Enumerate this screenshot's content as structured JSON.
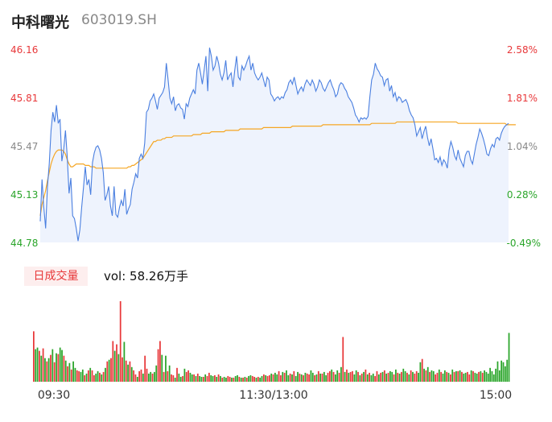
{
  "header": {
    "name": "中科曙光",
    "code": "603019.SH"
  },
  "volume_panel": {
    "badge": "日成交量",
    "vol_label": "vol: 58.26万手"
  },
  "colors": {
    "price_line": "#4a7fe0",
    "avg_line": "#f5a623",
    "up": "#e8383a",
    "down": "#2aa52a",
    "area_fill": "#eef3fd"
  },
  "chart_data": [
    {
      "type": "line",
      "y_ticks": [
        "46.16",
        "45.81",
        "45.47",
        "45.13",
        "44.78"
      ],
      "y_right_ticks": [
        "2.58%",
        "1.81%",
        "1.04%",
        "0.28%",
        "-0.49%"
      ],
      "ylim": [
        44.78,
        46.16
      ],
      "x_ticks": [
        "09:30",
        "11:30/13:00",
        "15:00"
      ],
      "series": [
        {
          "values": [
            44.93,
            45.23,
            45.03,
            44.88,
            45.18,
            45.34,
            45.58,
            45.71,
            45.64,
            45.76,
            45.63,
            45.66,
            45.36,
            45.44,
            45.58,
            45.39,
            45.13,
            45.24,
            44.97,
            44.95,
            44.88,
            44.79,
            44.87,
            45.03,
            45.17,
            45.32,
            45.19,
            45.23,
            45.12,
            45.35,
            45.42,
            45.46,
            45.47,
            45.44,
            45.38,
            45.28,
            45.08,
            45.12,
            45.18,
            45.04,
            44.97,
            45.18,
            44.98,
            44.96,
            45.03,
            45.08,
            45.04,
            45.16,
            44.98,
            45.02,
            45.05,
            45.16,
            45.21,
            45.27,
            45.24,
            45.38,
            45.41,
            45.38,
            45.49,
            45.71,
            45.73,
            45.79,
            45.81,
            45.84,
            45.79,
            45.73,
            45.81,
            45.83,
            45.85,
            45.89,
            46.06,
            45.94,
            45.81,
            45.77,
            45.82,
            45.72,
            45.76,
            45.77,
            45.74,
            45.73,
            45.66,
            45.77,
            45.75,
            45.81,
            45.84,
            45.87,
            45.84,
            46.01,
            46.06,
            45.99,
            45.91,
            46.01,
            46.11,
            45.86,
            46.17,
            46.11,
            46.01,
            46.04,
            46.11,
            46.06,
            45.98,
            45.94,
            45.99,
            46.08,
            45.94,
            45.97,
            45.99,
            45.89,
            46.01,
            46.11,
            45.96,
            45.94,
            46.04,
            46.01,
            46.04,
            46.08,
            46.11,
            46.01,
            46.06,
            45.99,
            45.96,
            45.94,
            45.96,
            45.99,
            45.94,
            45.89,
            45.96,
            45.94,
            45.84,
            45.82,
            45.79,
            45.81,
            45.82,
            45.8,
            45.82,
            45.81,
            45.85,
            45.87,
            45.92,
            45.94,
            45.91,
            45.96,
            45.9,
            45.84,
            45.87,
            45.89,
            45.86,
            45.91,
            45.94,
            45.92,
            45.9,
            45.94,
            45.91,
            45.86,
            45.89,
            45.94,
            45.92,
            45.88,
            45.86,
            45.89,
            45.92,
            45.94,
            45.9,
            45.87,
            45.82,
            45.84,
            45.9,
            45.92,
            45.91,
            45.88,
            45.86,
            45.82,
            45.8,
            45.78,
            45.74,
            45.69,
            45.67,
            45.64,
            45.67,
            45.66,
            45.67,
            45.66,
            45.68,
            45.82,
            45.94,
            45.98,
            46.06,
            46.02,
            46.0,
            45.97,
            45.96,
            45.9,
            45.94,
            45.95,
            45.86,
            45.9,
            45.82,
            45.85,
            45.79,
            45.82,
            45.81,
            45.78,
            45.79,
            45.8,
            45.77,
            45.72,
            45.69,
            45.67,
            45.62,
            45.54,
            45.57,
            45.6,
            45.52,
            45.57,
            45.61,
            45.53,
            45.47,
            45.52,
            45.45,
            45.37,
            45.38,
            45.35,
            45.39,
            45.33,
            45.37,
            45.35,
            45.31,
            45.44,
            45.5,
            45.46,
            45.4,
            45.37,
            45.44,
            45.38,
            45.35,
            45.32,
            45.4,
            45.43,
            45.43,
            45.37,
            45.34,
            45.41,
            45.48,
            45.53,
            45.59,
            45.56,
            45.52,
            45.47,
            45.41,
            45.4,
            45.45,
            45.48,
            45.46,
            45.52,
            45.53,
            45.51,
            45.56,
            45.59,
            45.61,
            45.62,
            45.63
          ]
        },
        {
          "values": [
            44.97,
            45.05,
            45.1,
            45.15,
            45.22,
            45.28,
            45.34,
            45.38,
            45.41,
            45.43,
            45.44,
            45.44,
            45.44,
            45.43,
            45.41,
            45.37,
            45.34,
            45.32,
            45.32,
            45.33,
            45.34,
            45.34,
            45.34,
            45.34,
            45.34,
            45.33,
            45.33,
            45.33,
            45.32,
            45.32,
            45.32,
            45.31,
            45.31,
            45.31,
            45.31,
            45.31,
            45.31,
            45.31,
            45.31,
            45.31,
            45.31,
            45.31,
            45.31,
            45.31,
            45.31,
            45.31,
            45.31,
            45.31,
            45.31,
            45.32,
            45.32,
            45.33,
            45.33,
            45.34,
            45.35,
            45.36,
            45.37,
            45.38,
            45.4,
            45.42,
            45.44,
            45.46,
            45.48,
            45.5,
            45.5,
            45.51,
            45.51,
            45.51,
            45.52,
            45.52,
            45.53,
            45.53,
            45.53,
            45.53,
            45.54,
            45.54,
            45.54,
            45.54,
            45.54,
            45.54,
            45.54,
            45.54,
            45.54,
            45.54,
            45.54,
            45.55,
            45.55,
            45.55,
            45.55,
            45.55,
            45.56,
            45.56,
            45.56,
            45.56,
            45.56,
            45.57,
            45.57,
            45.57,
            45.57,
            45.57,
            45.57,
            45.57,
            45.57,
            45.58,
            45.58,
            45.58,
            45.58,
            45.58,
            45.58,
            45.58,
            45.58,
            45.59,
            45.59,
            45.59,
            45.59,
            45.59,
            45.59,
            45.59,
            45.59,
            45.59,
            45.59,
            45.59,
            45.59,
            45.59,
            45.6,
            45.6,
            45.6,
            45.6,
            45.6,
            45.6,
            45.6,
            45.6,
            45.6,
            45.6,
            45.6,
            45.6,
            45.6,
            45.6,
            45.6,
            45.6,
            45.61,
            45.61,
            45.61,
            45.61,
            45.61,
            45.61,
            45.61,
            45.61,
            45.61,
            45.61,
            45.61,
            45.61,
            45.61,
            45.61,
            45.61,
            45.61,
            45.61,
            45.62,
            45.62,
            45.62,
            45.62,
            45.62,
            45.62,
            45.62,
            45.62,
            45.62,
            45.62,
            45.62,
            45.62,
            45.62,
            45.62,
            45.62,
            45.62,
            45.62,
            45.62,
            45.62,
            45.62,
            45.62,
            45.62,
            45.62,
            45.62,
            45.62,
            45.62,
            45.62,
            45.63,
            45.63,
            45.63,
            45.63,
            45.63,
            45.63,
            45.63,
            45.63,
            45.63,
            45.63,
            45.63,
            45.63,
            45.63,
            45.63,
            45.64,
            45.64,
            45.64,
            45.64,
            45.64,
            45.64,
            45.64,
            45.64,
            45.64,
            45.64,
            45.64,
            45.64,
            45.64,
            45.64,
            45.64,
            45.64,
            45.64,
            45.64,
            45.64,
            45.64,
            45.64,
            45.64,
            45.64,
            45.64,
            45.64,
            45.64,
            45.64,
            45.64,
            45.64,
            45.64,
            45.64,
            45.64,
            45.64,
            45.64,
            45.63,
            45.63,
            45.63,
            45.63,
            45.63,
            45.63,
            45.63,
            45.63,
            45.63,
            45.63,
            45.63,
            45.63,
            45.63,
            45.63,
            45.63,
            45.63,
            45.63,
            45.63,
            45.63,
            45.63,
            45.63,
            45.63,
            45.63,
            45.63,
            45.63,
            45.63,
            45.63,
            45.62,
            45.62,
            45.62,
            45.62,
            45.62,
            45.62
          ]
        }
      ]
    },
    {
      "type": "bar",
      "volumes": [
        62,
        40,
        42,
        38,
        32,
        41,
        29,
        25,
        29,
        33,
        40,
        24,
        35,
        34,
        42,
        39,
        32,
        26,
        19,
        23,
        15,
        25,
        17,
        14,
        13,
        12,
        15,
        8,
        10,
        14,
        17,
        14,
        8,
        10,
        13,
        11,
        9,
        12,
        17,
        25,
        27,
        29,
        50,
        38,
        46,
        34,
        99,
        30,
        49,
        26,
        21,
        25,
        18,
        14,
        9,
        6,
        13,
        15,
        10,
        32,
        16,
        10,
        12,
        10,
        12,
        20,
        40,
        50,
        33,
        12,
        32,
        13,
        20,
        9,
        8,
        5,
        17,
        10,
        6,
        7,
        16,
        12,
        14,
        11,
        9,
        9,
        7,
        10,
        7,
        6,
        6,
        9,
        7,
        11,
        8,
        7,
        8,
        6,
        9,
        7,
        5,
        6,
        5,
        7,
        6,
        5,
        5,
        7,
        8,
        6,
        5,
        5,
        6,
        5,
        7,
        8,
        7,
        6,
        5,
        6,
        5,
        7,
        9,
        8,
        7,
        8,
        10,
        9,
        11,
        9,
        13,
        8,
        12,
        11,
        14,
        8,
        10,
        9,
        13,
        7,
        12,
        10,
        9,
        8,
        11,
        10,
        9,
        14,
        11,
        8,
        9,
        13,
        10,
        10,
        12,
        8,
        11,
        13,
        15,
        12,
        9,
        14,
        11,
        18,
        55,
        12,
        15,
        11,
        12,
        13,
        9,
        14,
        12,
        8,
        10,
        12,
        15,
        9,
        11,
        8,
        10,
        7,
        13,
        9,
        11,
        12,
        14,
        10,
        11,
        13,
        12,
        9,
        15,
        11,
        10,
        12,
        16,
        13,
        11,
        9,
        14,
        12,
        10,
        13,
        11,
        24,
        28,
        16,
        14,
        18,
        12,
        14,
        13,
        9,
        11,
        15,
        12,
        10,
        14,
        12,
        11,
        9,
        15,
        12,
        13,
        13,
        14,
        12,
        10,
        11,
        12,
        9,
        14,
        13,
        11,
        10,
        12,
        13,
        11,
        14,
        12,
        10,
        17,
        13,
        9,
        16,
        25,
        14,
        26,
        24,
        19,
        27,
        60
      ],
      "up": [
        1,
        0,
        0,
        1,
        0,
        1,
        0,
        1,
        0,
        1,
        0,
        1,
        0,
        1,
        0,
        0,
        1,
        0,
        1,
        0,
        1,
        0,
        0,
        1,
        1,
        0,
        0,
        1,
        0,
        1,
        0,
        1,
        1,
        0,
        0,
        1,
        0,
        1,
        0,
        1,
        0,
        1,
        1,
        0,
        1,
        0,
        1,
        1,
        0,
        1,
        0,
        1,
        0,
        1,
        1,
        0,
        1,
        1,
        0,
        1,
        1,
        0,
        0,
        1,
        0,
        0,
        1,
        1,
        0,
        1,
        0,
        1,
        0,
        1,
        1,
        0,
        1,
        0,
        0,
        1,
        0,
        1,
        1,
        0,
        0,
        1,
        0,
        1,
        0,
        0,
        1,
        0,
        1,
        1,
        0,
        0,
        1,
        0,
        1,
        0,
        1,
        0,
        0,
        1,
        1,
        0,
        1,
        0,
        0,
        1,
        0,
        1,
        0,
        1,
        0,
        0,
        1,
        1,
        0,
        1,
        0,
        0,
        1,
        0,
        1,
        1,
        0,
        1,
        0,
        0,
        1,
        1,
        0,
        1,
        0,
        0,
        1,
        0,
        1,
        0,
        0,
        1,
        0,
        1,
        0,
        1,
        1,
        0,
        0,
        1,
        0,
        1,
        0,
        1,
        0,
        0,
        1,
        1,
        0,
        1,
        0,
        0,
        1,
        0,
        1,
        0,
        1,
        0,
        1,
        1,
        0,
        0,
        1,
        0,
        1,
        0,
        1,
        0,
        1,
        0,
        0,
        1,
        1,
        0,
        1,
        0,
        1,
        0,
        1,
        0,
        0,
        1,
        0,
        1,
        0,
        1,
        0,
        0,
        1,
        0,
        1,
        0,
        1,
        1,
        0,
        0,
        1,
        0,
        1,
        0,
        1,
        0,
        0,
        1,
        1,
        0,
        1,
        0,
        0,
        1,
        0,
        1,
        0,
        1,
        0,
        1,
        0,
        1,
        0,
        0,
        1,
        1,
        0,
        1,
        0,
        0,
        1,
        0,
        1,
        0
      ]
    }
  ]
}
